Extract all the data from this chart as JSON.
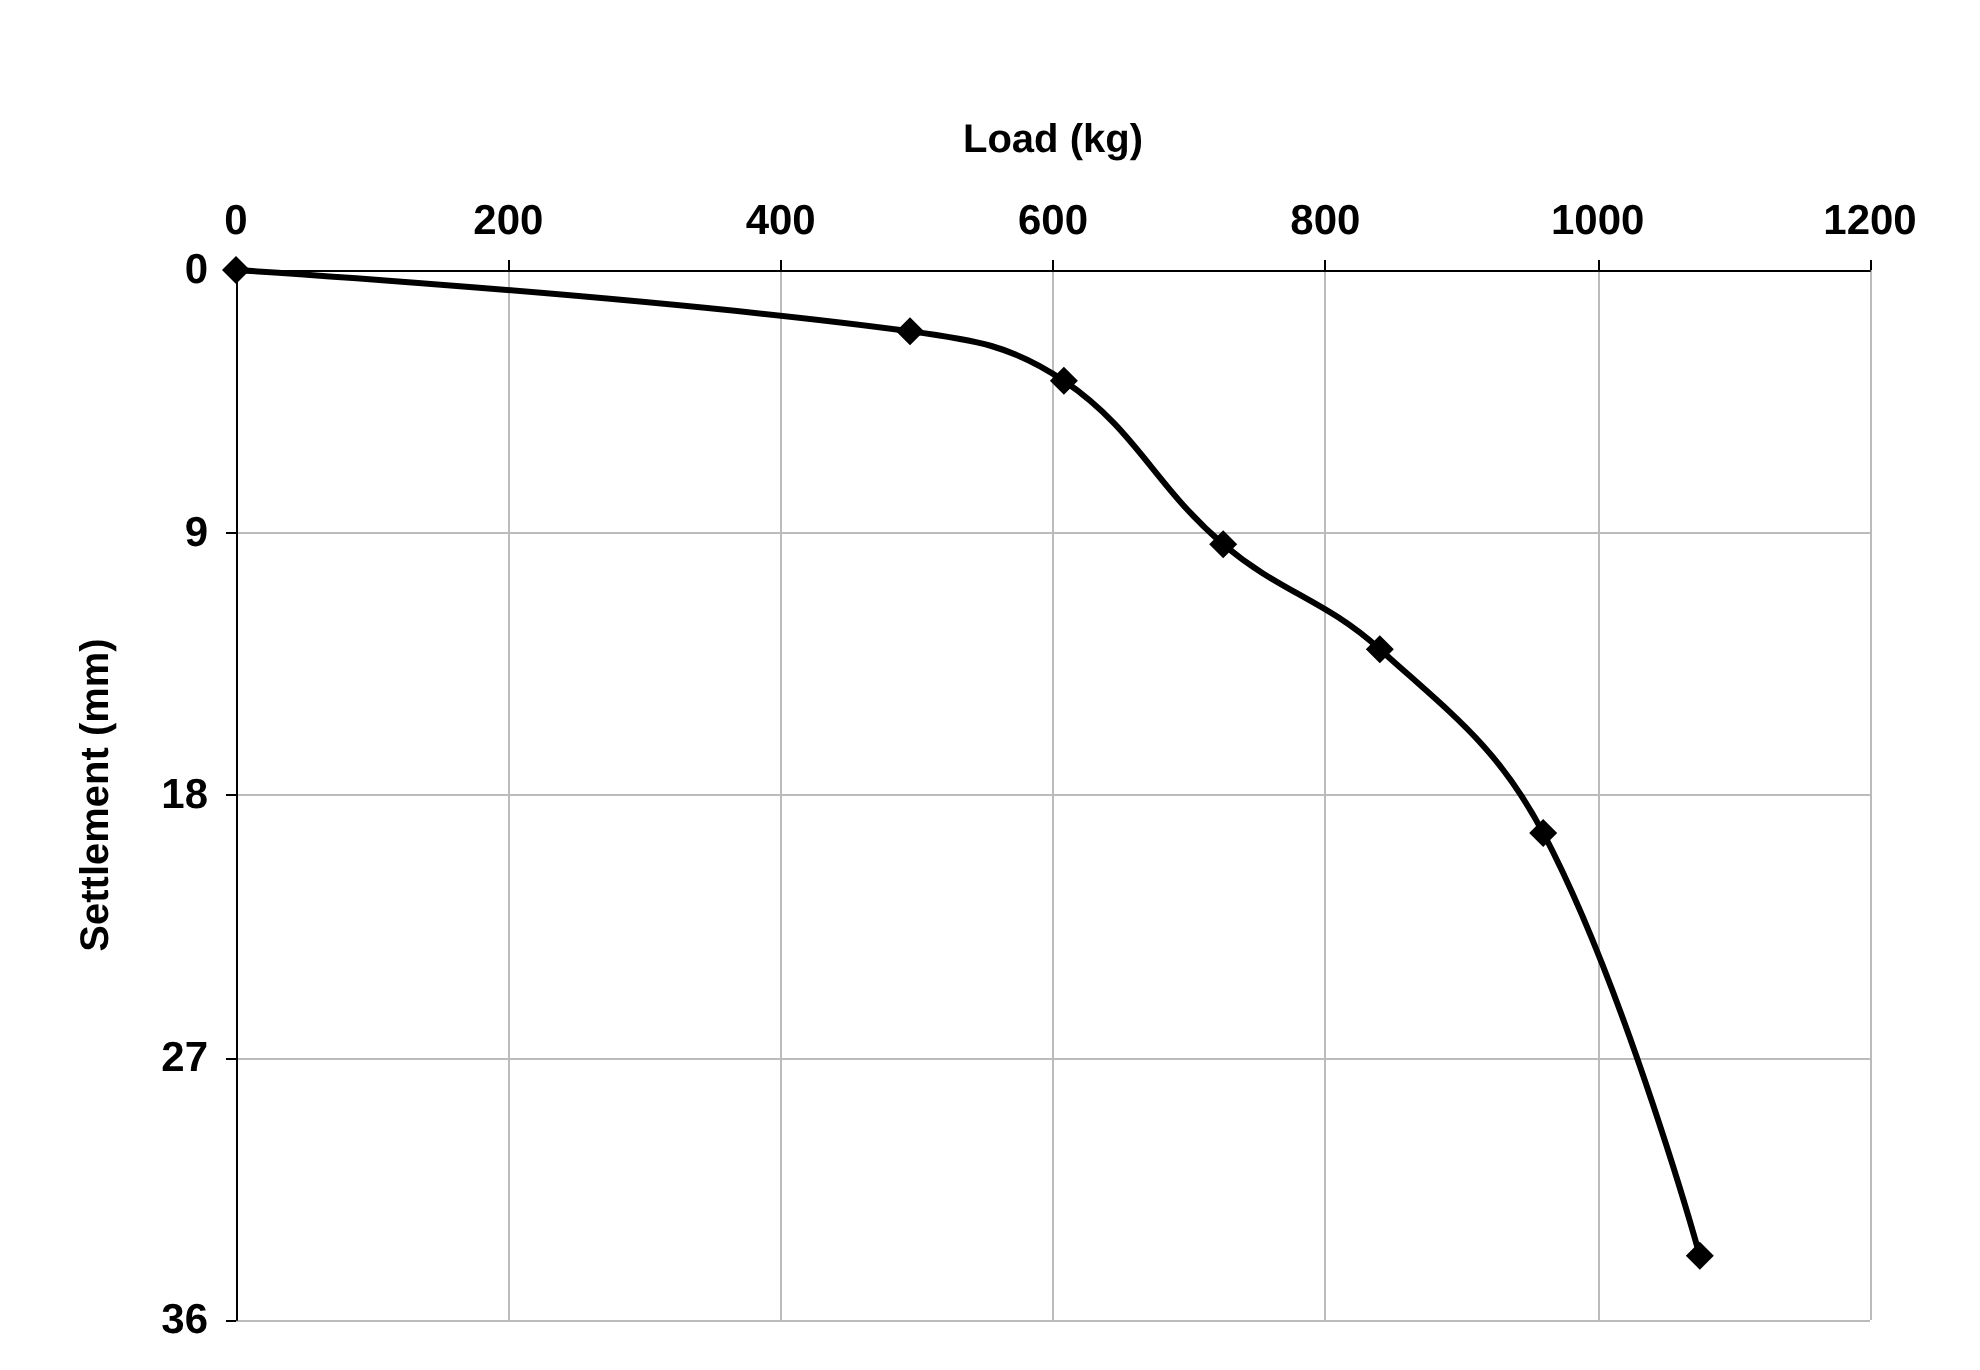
{
  "chart_data": {
    "type": "line",
    "xlabel": "Load (kg)",
    "ylabel": "Settlement (mm)",
    "x": [
      0,
      495,
      608,
      725,
      840,
      960,
      1075
    ],
    "series": [
      {
        "color": "#000000",
        "values": [
          0,
          2.1,
          3.8,
          9.4,
          13.0,
          19.3,
          33.8
        ]
      }
    ],
    "xlim": [
      0,
      1200
    ],
    "xticks": [
      0,
      200,
      400,
      600,
      800,
      1000,
      1200
    ],
    "ylim": [
      36,
      0
    ],
    "yticks": [
      0,
      9,
      18,
      27,
      36
    ],
    "grid": true,
    "marker": "diamond",
    "line_style": "solid"
  }
}
